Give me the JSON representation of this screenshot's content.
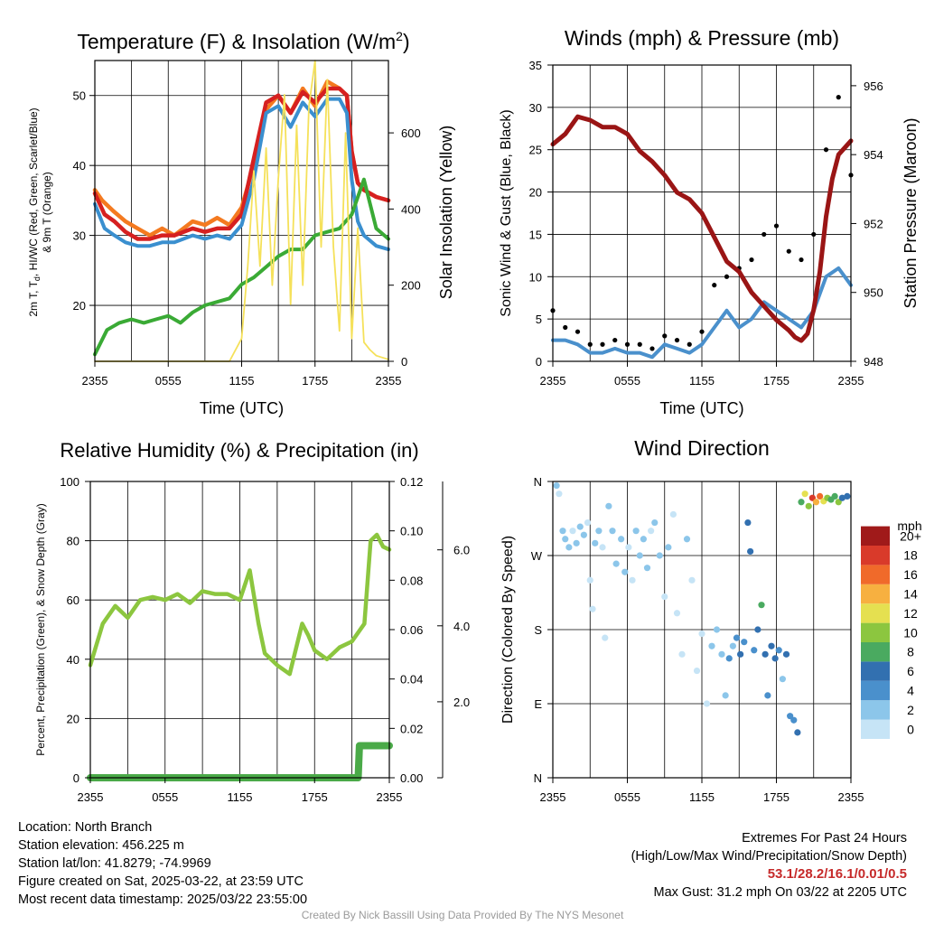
{
  "time_ticks": [
    "2355",
    "0555",
    "1155",
    "1755",
    "2355"
  ],
  "colors": {
    "temp_2m": "#d62020",
    "heat_index": "#3a8fcf",
    "dewpoint": "#3aaa35",
    "temp_9m": "#f47a20",
    "insolation": "#f5e15a",
    "wind_sonic": "#4a90cc",
    "gust": "#000000",
    "pressure": "#9a1515",
    "rh": "#8cc63f",
    "precip": "#4aaa48",
    "snow_depth": "#b5b5b5"
  },
  "chart_data": [
    {
      "id": "temperature",
      "type": "line",
      "title_main": "Temperature (F) & Insolation (W/m",
      "title_sup": "2",
      "title_end": ")",
      "xlabel": "Time (UTC)",
      "ylabel_lines": [
        "2m T, T",
        "d",
        ", HI/WC (Red, Green, Scarlet/Blue)",
        "& 9m T (Orange)"
      ],
      "y2label": "Solar Insolation (Yellow)",
      "x_range_hours": [
        0,
        24
      ],
      "ylim": [
        12,
        55
      ],
      "yticks": [
        20,
        30,
        40,
        50
      ],
      "y2lim": [
        0,
        790
      ],
      "y2ticks": [
        0,
        200,
        400,
        600
      ],
      "series": [
        {
          "key": "temp_9m",
          "axis": "y",
          "x": [
            0,
            0.6,
            1.5,
            2.5,
            3.5,
            4.5,
            5.5,
            6.5,
            8,
            9,
            10,
            11,
            12,
            13,
            14,
            15,
            16,
            17,
            18,
            19,
            20,
            20.6,
            21,
            21.5,
            22,
            23,
            24
          ],
          "y": [
            36.5,
            35,
            33.5,
            32,
            31,
            30,
            31,
            30,
            32,
            31.5,
            32.5,
            31.5,
            34,
            40,
            48,
            50,
            47.5,
            51,
            48.5,
            52,
            51,
            50,
            42,
            37.5,
            36.5,
            35.5,
            35
          ]
        },
        {
          "key": "temp_2m",
          "axis": "y",
          "x": [
            0,
            0.8,
            1.6,
            2.5,
            3.5,
            4.5,
            5.5,
            6.5,
            8,
            9,
            10,
            11,
            12,
            13,
            14,
            15,
            16,
            17,
            18,
            19,
            20,
            20.6,
            21,
            21.5,
            22,
            23,
            24
          ],
          "y": [
            36,
            33,
            32,
            30.5,
            29.5,
            29.5,
            30,
            30,
            31,
            30.5,
            31,
            31,
            33,
            41,
            49,
            50,
            47.5,
            50.5,
            49,
            51,
            51,
            50,
            42,
            37.5,
            36.5,
            35.5,
            35
          ]
        },
        {
          "key": "heat_index",
          "axis": "y",
          "x": [
            0,
            0.8,
            1.6,
            2.5,
            3.5,
            4.5,
            5.5,
            6.5,
            8,
            9,
            10,
            11,
            12,
            13,
            14,
            15,
            16,
            17,
            18,
            19,
            20,
            20.6,
            21,
            21.5,
            22,
            23,
            24
          ],
          "y": [
            34.5,
            31,
            30,
            29,
            28.5,
            28.5,
            29,
            29,
            30,
            29.5,
            30,
            29.5,
            31.5,
            38,
            47.5,
            48.5,
            45.5,
            49,
            47,
            49.5,
            49.5,
            47.5,
            38,
            32,
            30,
            28.5,
            28
          ]
        },
        {
          "key": "dewpoint",
          "axis": "y",
          "x": [
            0,
            1,
            2,
            3,
            4,
            5,
            6,
            7,
            8,
            9,
            10,
            11,
            12,
            13,
            14,
            15,
            16,
            17,
            18,
            19,
            20,
            21,
            22,
            23,
            24
          ],
          "y": [
            13,
            16.5,
            17.5,
            18,
            17.5,
            18,
            18.5,
            17.5,
            19,
            20,
            20.5,
            21,
            23,
            24,
            25.5,
            27,
            28,
            28,
            30,
            30.5,
            31,
            33,
            38,
            31,
            29.5
          ]
        },
        {
          "key": "insolation",
          "axis": "y2",
          "x": [
            0,
            11,
            12,
            12.5,
            13,
            13.5,
            14,
            14.5,
            15,
            15.5,
            16,
            16.5,
            17,
            17.5,
            18,
            18.5,
            19,
            19.5,
            20,
            20.5,
            21,
            21.5,
            22,
            22.5,
            23,
            23.5,
            24
          ],
          "y": [
            0,
            0,
            60,
            250,
            500,
            250,
            560,
            200,
            480,
            700,
            150,
            620,
            200,
            670,
            790,
            300,
            740,
            300,
            80,
            600,
            60,
            350,
            50,
            30,
            15,
            10,
            5
          ]
        }
      ]
    },
    {
      "id": "winds",
      "type": "line",
      "title_main": "Winds (mph) & Pressure (mb)",
      "xlabel": "Time (UTC)",
      "ylabel": "Sonic Wind & Gust (Blue, Black)",
      "y2label": "Station Pressure (Maroon)",
      "x_range_hours": [
        0,
        24
      ],
      "ylim": [
        0,
        35
      ],
      "yticks": [
        0,
        5,
        10,
        15,
        20,
        25,
        30,
        35
      ],
      "y2lim": [
        948,
        956.6
      ],
      "y2ticks": [
        948,
        950,
        952,
        954,
        956
      ],
      "series": [
        {
          "key": "wind_sonic",
          "axis": "y",
          "x": [
            0,
            1,
            2,
            3,
            4,
            5,
            6,
            7,
            8,
            9,
            10,
            11,
            12,
            13,
            14,
            15,
            16,
            17,
            18,
            19,
            20,
            21,
            22,
            23,
            24
          ],
          "y": [
            2.5,
            2.5,
            2,
            1,
            1,
            1.5,
            1,
            1,
            0.5,
            2,
            1.5,
            1,
            2,
            4,
            6,
            4,
            5,
            7,
            6,
            5,
            4,
            6,
            10,
            11,
            9
          ]
        },
        {
          "key": "gust",
          "axis": "y",
          "x": [
            0,
            1,
            2,
            3,
            4,
            5,
            6,
            7,
            8,
            9,
            10,
            11,
            12,
            13,
            14,
            15,
            16,
            17,
            18,
            19,
            20,
            21,
            22,
            23,
            24
          ],
          "y": [
            6,
            4,
            3.5,
            2,
            2,
            2.5,
            2,
            2,
            1.5,
            3,
            2.5,
            2,
            3.5,
            9,
            10,
            11,
            12,
            15,
            16,
            13,
            12,
            15,
            25,
            31.2,
            22
          ]
        },
        {
          "key": "pressure",
          "axis": "y2",
          "x": [
            0,
            1,
            2,
            3,
            4,
            5,
            6,
            7,
            8,
            9,
            10,
            11,
            12,
            13,
            14,
            15,
            16,
            17,
            18,
            19,
            19.5,
            20,
            20.5,
            21,
            21.5,
            22,
            22.5,
            23,
            24
          ],
          "y": [
            954.3,
            954.6,
            955.1,
            955.0,
            954.8,
            954.8,
            954.6,
            954.1,
            953.8,
            953.4,
            952.9,
            952.7,
            952.3,
            951.6,
            950.9,
            950.6,
            950.0,
            949.6,
            949.2,
            948.9,
            948.7,
            948.6,
            948.8,
            949.5,
            950.6,
            952.2,
            953.3,
            954.0,
            954.4
          ]
        }
      ]
    },
    {
      "id": "humidity",
      "type": "line",
      "title_main": "Relative Humidity (%) & Precipitation (in)",
      "ylabel": "Percent, Precipitation (Green), & Snow Depth (Gray)",
      "x_range_hours": [
        0,
        24
      ],
      "ylim": [
        0,
        100
      ],
      "yticks": [
        0,
        20,
        40,
        60,
        80,
        100
      ],
      "precip_ylim": [
        0,
        0.12
      ],
      "precip_ticks": [
        "0.00",
        "0.02",
        "0.04",
        "0.06",
        "0.08",
        "0.10",
        "0.12"
      ],
      "snow_ticks": [
        "2.0",
        "4.0",
        "6.0"
      ],
      "snow_ylim": [
        0,
        7.8
      ],
      "series": [
        {
          "key": "rh",
          "axis": "y",
          "x": [
            0,
            1,
            2,
            3,
            4,
            5,
            6,
            7,
            8,
            9,
            10,
            11,
            12,
            12.8,
            13.5,
            14,
            15,
            16,
            17,
            17.5,
            18,
            19,
            20,
            21,
            22,
            22.5,
            23,
            23.5,
            24
          ],
          "y": [
            38,
            52,
            58,
            54,
            60,
            61,
            60,
            62,
            59,
            63,
            62,
            62,
            60,
            70,
            52,
            42,
            38,
            35,
            52,
            48,
            43,
            40,
            44,
            46,
            52,
            80,
            82,
            78,
            77
          ]
        },
        {
          "key": "precip",
          "axis": "precip",
          "x": [
            0,
            21.5,
            21.6,
            24
          ],
          "y": [
            0,
            0,
            0.013,
            0.013
          ]
        },
        {
          "key": "snow_depth",
          "axis": "snow",
          "x": [
            12.5,
            13.5
          ],
          "y": [
            0,
            0
          ]
        }
      ]
    },
    {
      "id": "wind_direction",
      "type": "scatter",
      "title_main": "Wind Direction",
      "ylabel": "Direction (Colored By Speed)",
      "x_range_hours": [
        0,
        24
      ],
      "ylim": [
        0,
        360
      ],
      "yticks": [
        "N",
        "E",
        "S",
        "W",
        "N"
      ],
      "legend_title": "mph",
      "legend_labels": [
        "0",
        "2",
        "4",
        "6",
        "8",
        "10",
        "12",
        "14",
        "16",
        "18",
        "20+"
      ],
      "legend_colors": [
        "#c6e4f6",
        "#8cc6ea",
        "#4a90cc",
        "#3270b0",
        "#4aaa60",
        "#8cc63f",
        "#e5e050",
        "#f7b040",
        "#f06a2a",
        "#d93a2a",
        "#a01a1a"
      ],
      "points": [
        {
          "t": 0.3,
          "d": 355,
          "s": 2
        },
        {
          "t": 0.5,
          "d": 345,
          "s": 1
        },
        {
          "t": 0.8,
          "d": 300,
          "s": 2
        },
        {
          "t": 1.0,
          "d": 290,
          "s": 3
        },
        {
          "t": 1.3,
          "d": 280,
          "s": 2
        },
        {
          "t": 1.6,
          "d": 300,
          "s": 1
        },
        {
          "t": 1.9,
          "d": 285,
          "s": 2
        },
        {
          "t": 2.2,
          "d": 305,
          "s": 3
        },
        {
          "t": 2.5,
          "d": 295,
          "s": 2
        },
        {
          "t": 2.8,
          "d": 310,
          "s": 1
        },
        {
          "t": 3.0,
          "d": 240,
          "s": 1
        },
        {
          "t": 3.2,
          "d": 205,
          "s": 1
        },
        {
          "t": 3.4,
          "d": 285,
          "s": 2
        },
        {
          "t": 3.7,
          "d": 300,
          "s": 2
        },
        {
          "t": 4.0,
          "d": 280,
          "s": 1
        },
        {
          "t": 4.2,
          "d": 170,
          "s": 1
        },
        {
          "t": 4.5,
          "d": 330,
          "s": 2
        },
        {
          "t": 4.8,
          "d": 300,
          "s": 3
        },
        {
          "t": 5.1,
          "d": 260,
          "s": 2
        },
        {
          "t": 5.5,
          "d": 290,
          "s": 2
        },
        {
          "t": 5.8,
          "d": 250,
          "s": 2
        },
        {
          "t": 6.1,
          "d": 280,
          "s": 1
        },
        {
          "t": 6.4,
          "d": 240,
          "s": 1
        },
        {
          "t": 6.7,
          "d": 300,
          "s": 2
        },
        {
          "t": 7.0,
          "d": 270,
          "s": 3
        },
        {
          "t": 7.3,
          "d": 290,
          "s": 2
        },
        {
          "t": 7.6,
          "d": 255,
          "s": 2
        },
        {
          "t": 7.9,
          "d": 300,
          "s": 1
        },
        {
          "t": 8.2,
          "d": 310,
          "s": 2
        },
        {
          "t": 8.6,
          "d": 270,
          "s": 3
        },
        {
          "t": 9.0,
          "d": 220,
          "s": 1
        },
        {
          "t": 9.3,
          "d": 280,
          "s": 2
        },
        {
          "t": 9.7,
          "d": 320,
          "s": 1
        },
        {
          "t": 10.0,
          "d": 200,
          "s": 1
        },
        {
          "t": 10.4,
          "d": 150,
          "s": 1
        },
        {
          "t": 10.8,
          "d": 290,
          "s": 2
        },
        {
          "t": 11.2,
          "d": 240,
          "s": 1
        },
        {
          "t": 11.6,
          "d": 130,
          "s": 1
        },
        {
          "t": 12.0,
          "d": 175,
          "s": 1
        },
        {
          "t": 12.4,
          "d": 90,
          "s": 1
        },
        {
          "t": 12.8,
          "d": 160,
          "s": 2
        },
        {
          "t": 13.2,
          "d": 180,
          "s": 2
        },
        {
          "t": 13.6,
          "d": 150,
          "s": 3
        },
        {
          "t": 13.9,
          "d": 100,
          "s": 3
        },
        {
          "t": 14.2,
          "d": 145,
          "s": 4
        },
        {
          "t": 14.5,
          "d": 160,
          "s": 3
        },
        {
          "t": 14.8,
          "d": 170,
          "s": 4
        },
        {
          "t": 15.1,
          "d": 150,
          "s": 6
        },
        {
          "t": 15.4,
          "d": 165,
          "s": 4
        },
        {
          "t": 15.7,
          "d": 310,
          "s": 7
        },
        {
          "t": 15.9,
          "d": 275,
          "s": 6
        },
        {
          "t": 16.2,
          "d": 155,
          "s": 5
        },
        {
          "t": 16.5,
          "d": 180,
          "s": 7
        },
        {
          "t": 16.8,
          "d": 210,
          "s": 8
        },
        {
          "t": 17.1,
          "d": 150,
          "s": 6
        },
        {
          "t": 17.3,
          "d": 100,
          "s": 4
        },
        {
          "t": 17.6,
          "d": 160,
          "s": 7
        },
        {
          "t": 17.9,
          "d": 145,
          "s": 6
        },
        {
          "t": 18.2,
          "d": 155,
          "s": 5
        },
        {
          "t": 18.5,
          "d": 120,
          "s": 2
        },
        {
          "t": 18.8,
          "d": 150,
          "s": 6
        },
        {
          "t": 19.1,
          "d": 75,
          "s": 4
        },
        {
          "t": 19.4,
          "d": 70,
          "s": 4
        },
        {
          "t": 19.7,
          "d": 55,
          "s": 6
        },
        {
          "t": 20.0,
          "d": 335,
          "s": 9
        },
        {
          "t": 20.3,
          "d": 345,
          "s": 12
        },
        {
          "t": 20.6,
          "d": 330,
          "s": 10
        },
        {
          "t": 20.9,
          "d": 340,
          "s": 18
        },
        {
          "t": 21.2,
          "d": 335,
          "s": 14
        },
        {
          "t": 21.5,
          "d": 342,
          "s": 16
        },
        {
          "t": 21.8,
          "d": 336,
          "s": 12
        },
        {
          "t": 22.1,
          "d": 340,
          "s": 10
        },
        {
          "t": 22.4,
          "d": 338,
          "s": 8
        },
        {
          "t": 22.7,
          "d": 342,
          "s": 9
        },
        {
          "t": 23.0,
          "d": 335,
          "s": 11
        },
        {
          "t": 23.3,
          "d": 340,
          "s": 7
        },
        {
          "t": 23.7,
          "d": 342,
          "s": 6
        }
      ]
    }
  ],
  "station_info": [
    "Location: North Branch",
    "Station elevation: 456.225 m",
    "Station lat/lon: 41.8279; -74.9969",
    "Figure created on Sat, 2025-03-22, at 23:59 UTC",
    "Most recent data timestamp: 2025/03/22 23:55:00"
  ],
  "extremes": {
    "heading": "Extremes For Past 24 Hours",
    "subheading": "(High/Low/Max Wind/Precipitation/Snow Depth)",
    "values": "53.1/28.2/16.1/0.01/0.5",
    "max_gust": "Max Gust: 31.2 mph On 03/22 at 2205 UTC"
  },
  "credit": "Created By Nick Bassill Using Data Provided By The NYS Mesonet"
}
